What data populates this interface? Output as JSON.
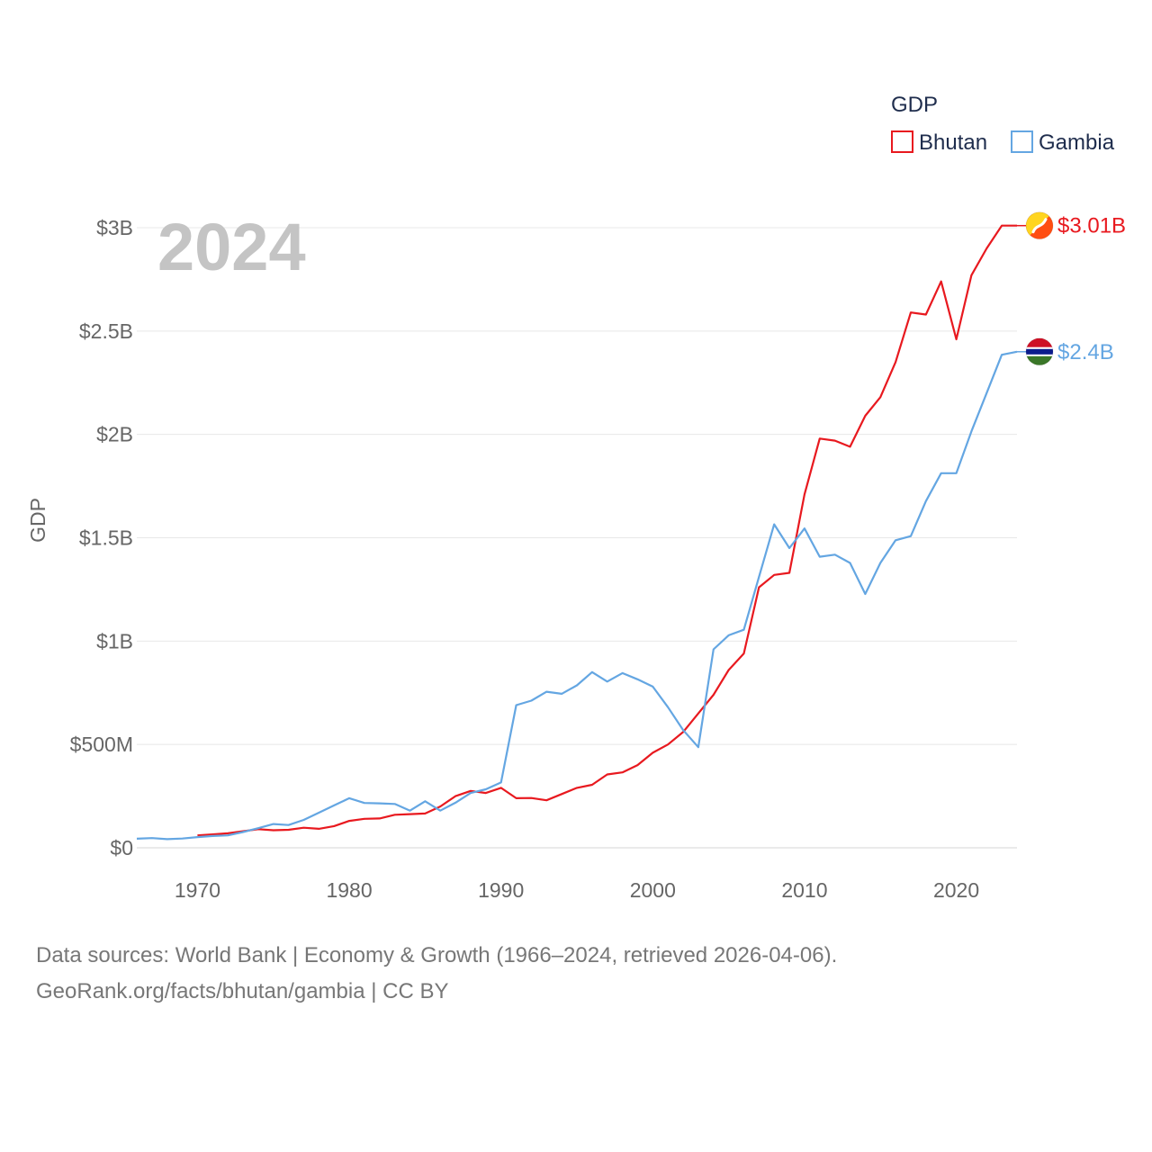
{
  "chart_data": {
    "type": "line",
    "title": "GDP",
    "ylabel": "GDP",
    "xlabel": "",
    "xlim": [
      1966,
      2024
    ],
    "ylim": [
      0,
      3000000000
    ],
    "year_label": "2024",
    "x_ticks": [
      {
        "value": 1970,
        "label": "1970"
      },
      {
        "value": 1980,
        "label": "1980"
      },
      {
        "value": 1990,
        "label": "1990"
      },
      {
        "value": 2000,
        "label": "2000"
      },
      {
        "value": 2010,
        "label": "2010"
      },
      {
        "value": 2020,
        "label": "2020"
      }
    ],
    "y_ticks": [
      {
        "value": 0,
        "label": "$0"
      },
      {
        "value": 500000000,
        "label": "$500M"
      },
      {
        "value": 1000000000,
        "label": "$1B"
      },
      {
        "value": 1500000000,
        "label": "$1.5B"
      },
      {
        "value": 2000000000,
        "label": "$2B"
      },
      {
        "value": 2500000000,
        "label": "$2.5B"
      },
      {
        "value": 3000000000,
        "label": "$3B"
      }
    ],
    "legend": {
      "title": "GDP",
      "position": "top-right"
    },
    "series": [
      {
        "name": "Bhutan",
        "color": "#e8191f",
        "end_label": "$3.01B",
        "flag_icon": "bhutan-flag-icon",
        "x": [
          1970,
          1971,
          1972,
          1973,
          1974,
          1975,
          1976,
          1977,
          1978,
          1979,
          1980,
          1981,
          1982,
          1983,
          1984,
          1985,
          1986,
          1987,
          1988,
          1989,
          1990,
          1991,
          1992,
          1993,
          1994,
          1995,
          1996,
          1997,
          1998,
          1999,
          2000,
          2001,
          2002,
          2003,
          2004,
          2005,
          2006,
          2007,
          2008,
          2009,
          2010,
          2011,
          2012,
          2013,
          2014,
          2015,
          2016,
          2017,
          2018,
          2019,
          2020,
          2021,
          2022,
          2023,
          2024
        ],
        "values": [
          60000000,
          65000000,
          70000000,
          80000000,
          90000000,
          85000000,
          87000000,
          97000000,
          92000000,
          105000000,
          130000000,
          140000000,
          142000000,
          160000000,
          163000000,
          166000000,
          200000000,
          250000000,
          275000000,
          265000000,
          290000000,
          240000000,
          241000000,
          230000000,
          260000000,
          290000000,
          305000000,
          355000000,
          365000000,
          400000000,
          460000000,
          500000000,
          560000000,
          650000000,
          740000000,
          860000000,
          940000000,
          1260000000,
          1320000000,
          1330000000,
          1710000000,
          1980000000,
          1970000000,
          1940000000,
          2090000000,
          2180000000,
          2350000000,
          2590000000,
          2580000000,
          2740000000,
          2460000000,
          2770000000,
          2900000000,
          3010000000,
          3010000000
        ]
      },
      {
        "name": "Gambia",
        "color": "#64a6e2",
        "end_label": "$2.4B",
        "flag_icon": "gambia-flag-icon",
        "x": [
          1966,
          1967,
          1968,
          1969,
          1970,
          1971,
          1972,
          1973,
          1974,
          1975,
          1976,
          1977,
          1978,
          1979,
          1980,
          1981,
          1982,
          1983,
          1984,
          1985,
          1986,
          1987,
          1988,
          1989,
          1990,
          1991,
          1992,
          1993,
          1994,
          1995,
          1996,
          1997,
          1998,
          1999,
          2000,
          2001,
          2002,
          2003,
          2004,
          2005,
          2006,
          2007,
          2008,
          2009,
          2010,
          2011,
          2012,
          2013,
          2014,
          2015,
          2016,
          2017,
          2018,
          2019,
          2020,
          2021,
          2022,
          2023,
          2024
        ],
        "values": [
          44000000,
          47000000,
          42000000,
          45000000,
          52000000,
          57000000,
          60000000,
          76000000,
          95000000,
          115000000,
          110000000,
          135000000,
          170000000,
          205000000,
          240000000,
          217000000,
          215000000,
          212000000,
          180000000,
          225000000,
          180000000,
          218000000,
          265000000,
          283000000,
          316000000,
          690000000,
          712000000,
          755000000,
          745000000,
          786000000,
          850000000,
          804000000,
          845000000,
          815000000,
          780000000,
          680000000,
          570000000,
          487000000,
          960000000,
          1028000000,
          1055000000,
          1310000000,
          1565000000,
          1450000000,
          1545000000,
          1408000000,
          1418000000,
          1378000000,
          1228000000,
          1378000000,
          1488000000,
          1508000000,
          1677000000,
          1812000000,
          1812000000,
          2015000000,
          2200000000,
          2385000000,
          2400000000
        ]
      }
    ]
  },
  "source": {
    "line1": "Data sources: World Bank | Economy & Growth (1966–2024, retrieved 2026-04-06).",
    "line2": "GeoRank.org/facts/bhutan/gambia | CC BY"
  }
}
